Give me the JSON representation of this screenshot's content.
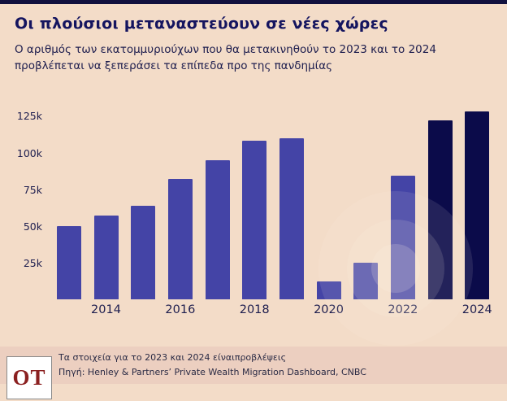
{
  "header": {
    "title": "Οι πλούσιοι μεταναστεύουν σε νέες χώρες",
    "subtitle": "Ο αριθμός των εκατομμυριούχων που θα μετακινηθούν το 2023 και το 2024 προβλέπεται να ξεπεράσει τα επίπεδα προ της πανδημίας"
  },
  "chart_data": {
    "type": "bar",
    "categories": [
      2013,
      2014,
      2015,
      2016,
      2017,
      2018,
      2019,
      2020,
      2021,
      2022,
      2023,
      2024
    ],
    "values": [
      50000,
      57000,
      64000,
      82000,
      95000,
      108000,
      110000,
      12000,
      25000,
      84000,
      122000,
      128000
    ],
    "projection_years": [
      2023,
      2024
    ],
    "y_ticks": [
      "25k",
      "50k",
      "75k",
      "100k",
      "125k"
    ],
    "x_ticks": [
      "2014",
      "2016",
      "2018",
      "2020",
      "2022",
      "2024"
    ],
    "ylim": [
      0,
      133000
    ],
    "grid": false,
    "legend": "none",
    "colors": {
      "bar": "#4444a6",
      "projection": "#0b0b4a"
    }
  },
  "footer": {
    "note": "Τα στοιχεία για το 2023 και 2024 είναιπροβλέψεις",
    "source": "Πηγή: Henley & Partners’ Private Wealth Migration Dashboard, CNBC",
    "logo": "OT"
  }
}
